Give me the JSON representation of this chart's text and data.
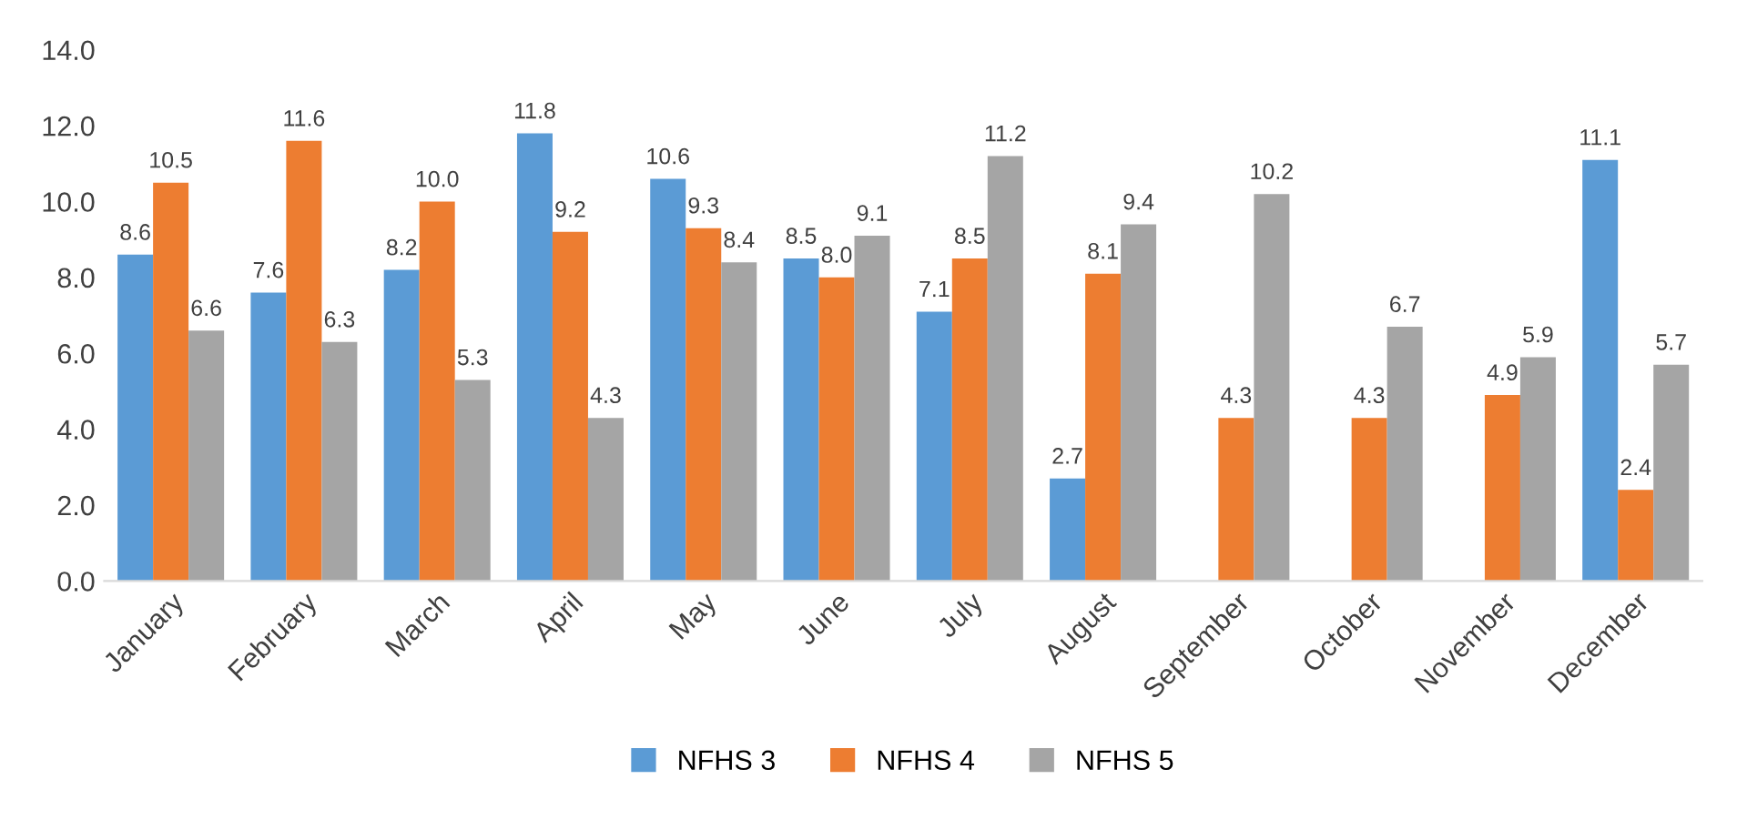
{
  "chart_data": {
    "type": "bar",
    "categories": [
      "January",
      "February",
      "March",
      "April",
      "May",
      "June",
      "July",
      "August",
      "September",
      "October",
      "November",
      "December"
    ],
    "series": [
      {
        "name": "NFHS 3",
        "color": "#5b9bd5",
        "values": [
          8.6,
          7.6,
          8.2,
          11.8,
          10.6,
          8.5,
          7.1,
          2.7,
          null,
          null,
          null,
          11.1
        ],
        "value_labels": [
          "8.6",
          "7.6",
          "8.2",
          "11.8",
          "10.6",
          "8.5",
          "7.1",
          "2.7",
          null,
          null,
          null,
          "11.1"
        ]
      },
      {
        "name": "NFHS 4",
        "color": "#ed7d31",
        "values": [
          10.5,
          11.6,
          10,
          9.2,
          9.3,
          8,
          8.5,
          8.1,
          4.3,
          4.3,
          4.9,
          2.4
        ],
        "value_labels": [
          "10.5",
          "11.6",
          "10.0",
          "9.2",
          "9.3",
          "8.0",
          "8.5",
          "8.1",
          "4.3",
          "4.3",
          "4.9",
          "2.4"
        ]
      },
      {
        "name": "NFHS 5",
        "color": "#a5a5a5",
        "values": [
          6.6,
          6.3,
          5.3,
          4.3,
          8.4,
          9.1,
          11.2,
          9.4,
          10.2,
          6.7,
          5.9,
          5.7
        ],
        "value_labels": [
          "6.6",
          "6.3",
          "5.3",
          "4.3",
          "8.4",
          "9.1",
          "11.2",
          "9.4",
          "10.2",
          "6.7",
          "5.9",
          "5.7"
        ]
      }
    ],
    "ylim": [
      0,
      14
    ],
    "yticks": [
      {
        "value": 0,
        "label": "0.0"
      },
      {
        "value": 2,
        "label": "2.0"
      },
      {
        "value": 4,
        "label": "4.0"
      },
      {
        "value": 6,
        "label": "6.0"
      },
      {
        "value": 8,
        "label": "8.0"
      },
      {
        "value": 10,
        "label": "10.0"
      },
      {
        "value": 12,
        "label": "12.0"
      },
      {
        "value": 14,
        "label": "14.0"
      }
    ],
    "legend": "bottom",
    "grid": false
  }
}
